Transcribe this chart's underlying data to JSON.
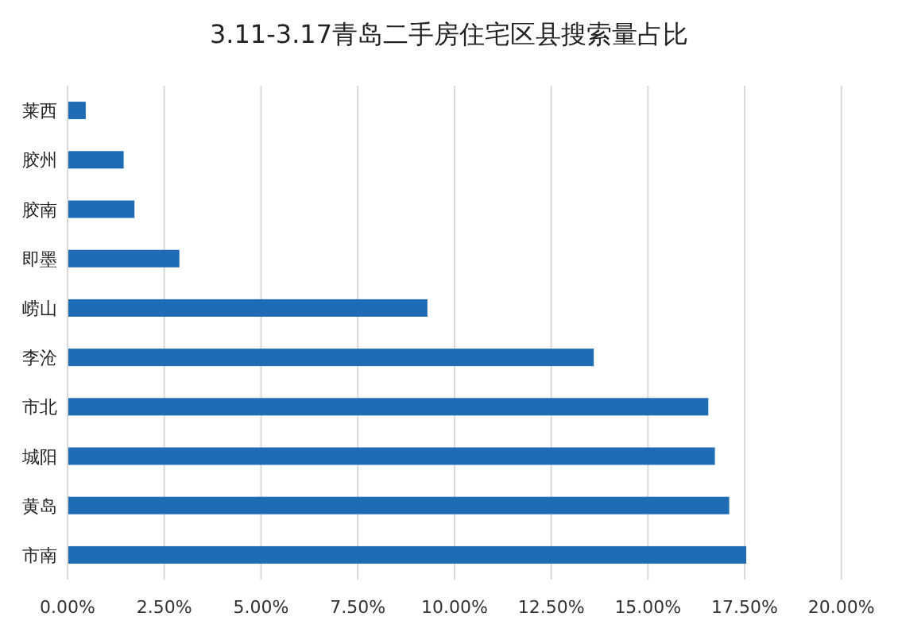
{
  "chart_data": {
    "type": "bar",
    "orientation": "horizontal",
    "title": "3.11-3.17青岛二手房住宅区县搜索量占比",
    "categories": [
      "莱西",
      "胶州",
      "胶南",
      "即墨",
      "崂山",
      "李沧",
      "市北",
      "城阳",
      "黄岛",
      "市南"
    ],
    "values": [
      0.47,
      1.45,
      1.73,
      2.89,
      9.3,
      13.6,
      16.56,
      16.73,
      17.1,
      17.54
    ],
    "color": "#1f6cb5",
    "xlim": [
      0,
      20
    ],
    "xticks": [
      {
        "value": 0,
        "label": "0.00%"
      },
      {
        "value": 2.5,
        "label": "2.50%"
      },
      {
        "value": 5,
        "label": "5.00%"
      },
      {
        "value": 7.5,
        "label": "7.50%"
      },
      {
        "value": 10,
        "label": "10.00%"
      },
      {
        "value": 12.5,
        "label": "12.50%"
      },
      {
        "value": 15,
        "label": "15.00%"
      },
      {
        "value": 17.5,
        "label": "17.50%"
      },
      {
        "value": 20,
        "label": "20.00%"
      }
    ],
    "grid": "x"
  }
}
